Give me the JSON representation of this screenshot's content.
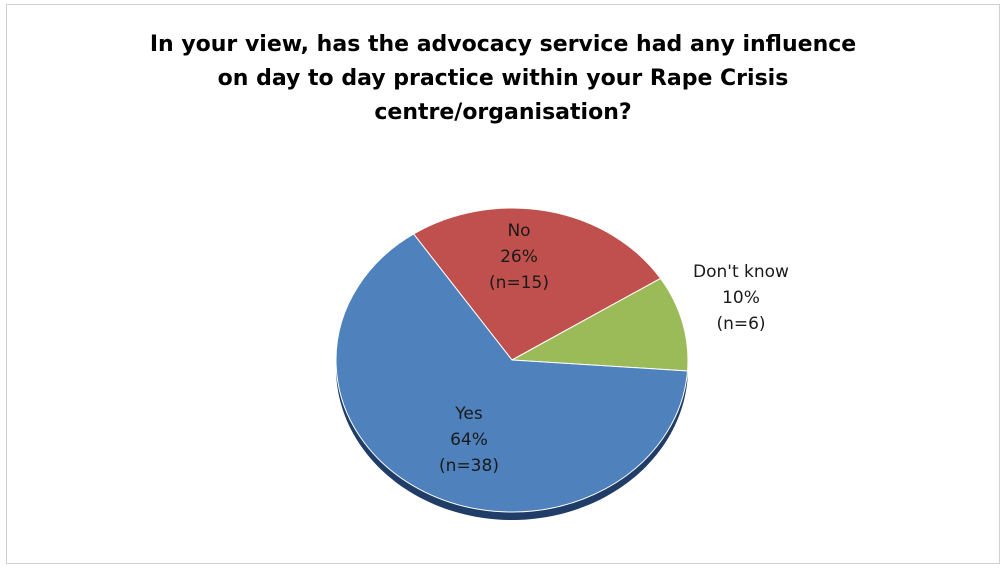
{
  "chart_data": {
    "type": "pie",
    "title_lines": [
      "In your view, has the advocacy service had any influence",
      "on day to day practice within your Rape Crisis",
      "centre/organisation?"
    ],
    "slices": [
      {
        "label": "Yes",
        "percent_label": "64%",
        "n_label": "(n=38)",
        "value": 38,
        "color": "#4f81bd",
        "edge": "#1f3d66"
      },
      {
        "label": "No",
        "percent_label": "26%",
        "n_label": "(n=15)",
        "value": 15,
        "color": "#c0504d",
        "edge": "#7a2f2d"
      },
      {
        "label": "Don't know",
        "percent_label": "10%",
        "n_label": "(n=6)",
        "value": 6,
        "color": "#9bbb59",
        "edge": "#5f7a32"
      }
    ],
    "legend": "none",
    "style": "3d-tilted"
  }
}
